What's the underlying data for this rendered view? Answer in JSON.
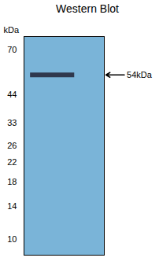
{
  "chart_data": {
    "type": "gel",
    "title": "Western Blot",
    "ylabel": "kDa",
    "values": [
      54
    ],
    "value_labels": [
      "54kDa"
    ],
    "data_labels": true,
    "colors": [
      "#7ab4d8",
      "#222235"
    ],
    "ylim": [
      8.5,
      80
    ],
    "yticks": [
      70,
      44,
      33,
      26,
      22,
      18,
      14,
      10
    ],
    "log": "y",
    "grid": false,
    "tick_labels": "y"
  }
}
